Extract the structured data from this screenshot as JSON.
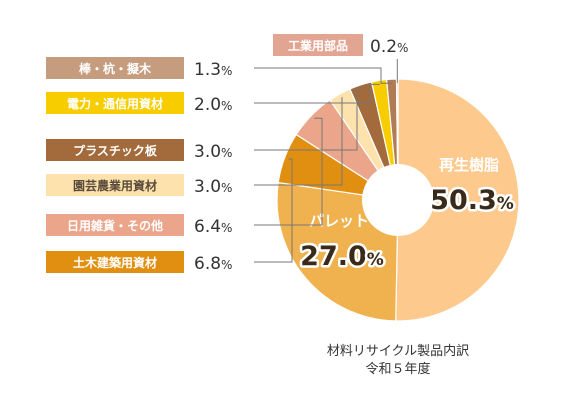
{
  "chart_data": {
    "type": "pie",
    "caption_lines": [
      "材料リサイクル製品内訳",
      "令和５年度"
    ],
    "slices": [
      {
        "label": "再生樹脂",
        "value": 50.3,
        "value_text": "50.3",
        "color": "#fdc98d",
        "big": true
      },
      {
        "label": "パレット",
        "value": 27.0,
        "value_text": "27.0",
        "color": "#f0b14f",
        "big": true
      },
      {
        "label": "土木建築用資材",
        "value": 6.8,
        "value_text": "6.8",
        "color": "#e08f10",
        "labelbg": "#e08f10",
        "labelcolor": "#ffffff"
      },
      {
        "label": "日用雑貨・その他",
        "value": 6.4,
        "value_text": "6.4",
        "color": "#eaa58a",
        "labelbg": "#eaa58a",
        "labelcolor": "#ffffff"
      },
      {
        "label": "園芸農業用資材",
        "value": 3.0,
        "value_text": "3.0",
        "color": "#fde2ad",
        "labelbg": "#fde2ad",
        "labelcolor": "#5a4a3a"
      },
      {
        "label": "プラスチック板",
        "value": 3.0,
        "value_text": "3.0",
        "color": "#a36a3b",
        "labelbg": "#a36a3b",
        "labelcolor": "#ffffff"
      },
      {
        "label": "電力・通信用資材",
        "value": 2.0,
        "value_text": "2.0",
        "color": "#f8cd00",
        "labelbg": "#f8cd00",
        "labelcolor": "#ffffff"
      },
      {
        "label": "棒・杭・擬木",
        "value": 1.3,
        "value_text": "1.3",
        "color": "#b07b55",
        "labelbg": "#c69c7e",
        "labelcolor": "#ffffff"
      },
      {
        "label": "工業用部品",
        "value": 0.2,
        "value_text": "0.2",
        "color": "#e2a592",
        "labelbg": "#e2a592",
        "labelcolor": "#ffffff"
      }
    ],
    "unit": "%"
  }
}
